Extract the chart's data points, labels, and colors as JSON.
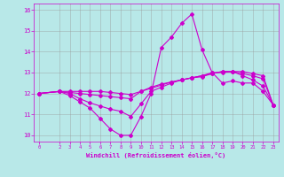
{
  "xlabel": "Windchill (Refroidissement éolien,°C)",
  "xlim": [
    -0.5,
    23.5
  ],
  "ylim": [
    9.7,
    16.3
  ],
  "yticks": [
    10,
    11,
    12,
    13,
    14,
    15,
    16
  ],
  "xticks": [
    0,
    2,
    3,
    4,
    5,
    6,
    7,
    8,
    9,
    10,
    11,
    12,
    13,
    14,
    15,
    16,
    17,
    18,
    19,
    20,
    21,
    22,
    23
  ],
  "background_color": "#b8e8e8",
  "line_color": "#cc00cc",
  "grid_color": "#999999",
  "x_vals": [
    0,
    2,
    3,
    4,
    5,
    6,
    7,
    8,
    9,
    10,
    11,
    12,
    13,
    14,
    15,
    16,
    17,
    18,
    19,
    20,
    21,
    22,
    23
  ],
  "series": [
    [
      12.0,
      12.1,
      11.9,
      11.6,
      11.3,
      10.8,
      10.3,
      10.0,
      10.0,
      10.9,
      12.0,
      14.2,
      14.7,
      15.35,
      15.8,
      14.1,
      13.0,
      12.5,
      12.6,
      12.5,
      12.5,
      12.1,
      11.45
    ],
    [
      12.0,
      12.1,
      12.0,
      11.75,
      11.55,
      11.4,
      11.25,
      11.15,
      10.9,
      11.5,
      12.1,
      12.3,
      12.5,
      12.65,
      12.75,
      12.85,
      13.0,
      13.0,
      13.05,
      12.85,
      12.65,
      12.35,
      11.45
    ],
    [
      12.0,
      12.1,
      12.05,
      12.0,
      11.95,
      11.9,
      11.85,
      11.8,
      11.75,
      12.1,
      12.25,
      12.4,
      12.55,
      12.65,
      12.75,
      12.85,
      12.95,
      13.05,
      13.05,
      12.95,
      12.85,
      12.7,
      11.45
    ],
    [
      12.0,
      12.1,
      12.1,
      12.1,
      12.1,
      12.1,
      12.05,
      12.0,
      11.95,
      12.1,
      12.3,
      12.45,
      12.55,
      12.65,
      12.75,
      12.8,
      12.95,
      13.05,
      13.05,
      13.05,
      12.95,
      12.85,
      11.45
    ]
  ]
}
